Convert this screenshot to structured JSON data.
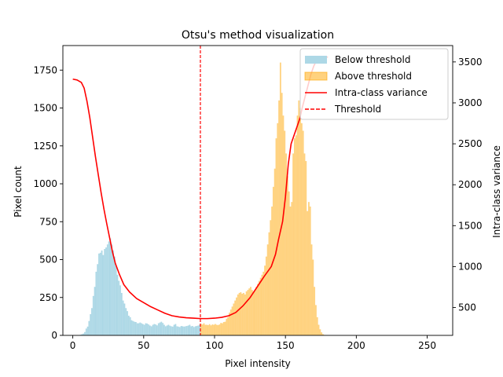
{
  "chart_data": {
    "type": "bar",
    "title": "Otsu's method visualization",
    "xlabel": "Pixel intensity",
    "ylabel": "Pixel count",
    "y2label": "Intra-class variance",
    "xlim": [
      -7,
      268
    ],
    "ylim": [
      0,
      1912
    ],
    "y2lim": [
      160,
      3700
    ],
    "xticks": [
      0,
      50,
      100,
      150,
      200,
      250
    ],
    "yticks": [
      0,
      250,
      500,
      750,
      1000,
      1250,
      1500,
      1750
    ],
    "y2ticks": [
      500,
      1000,
      1500,
      2000,
      2500,
      3000,
      3500
    ],
    "threshold": 90,
    "grid": false,
    "legend_placement": "top-right",
    "legend": [
      {
        "label": "Below threshold",
        "kind": "patch",
        "color": "#add8e6"
      },
      {
        "label": "Above threshold",
        "kind": "patch",
        "color": "#ffa500"
      },
      {
        "label": "Intra-class variance",
        "kind": "line",
        "color": "#ff0000"
      },
      {
        "label": "Threshold",
        "kind": "dashed",
        "color": "#ff0000"
      }
    ],
    "histogram": {
      "bin_width": 1,
      "x_start": 0,
      "counts": [
        0,
        0,
        0,
        0,
        0,
        4,
        8,
        12,
        22,
        45,
        58,
        95,
        140,
        180,
        260,
        320,
        420,
        470,
        540,
        545,
        560,
        530,
        570,
        580,
        600,
        620,
        640,
        600,
        560,
        520,
        460,
        400,
        360,
        330,
        280,
        230,
        210,
        180,
        160,
        130,
        120,
        100,
        95,
        90,
        88,
        80,
        80,
        85,
        80,
        75,
        70,
        80,
        78,
        72,
        65,
        60,
        70,
        75,
        72,
        66,
        80,
        85,
        90,
        82,
        70,
        60,
        65,
        70,
        64,
        60,
        58,
        70,
        75,
        60,
        58,
        55,
        62,
        60,
        58,
        60,
        62,
        65,
        70,
        60,
        62,
        55,
        60,
        62,
        65,
        70,
        75,
        72,
        80,
        70,
        70,
        68,
        74,
        66,
        72,
        70,
        75,
        70,
        68,
        72,
        82,
        80,
        88,
        90,
        110,
        120,
        150,
        170,
        190,
        210,
        230,
        250,
        270,
        280,
        285,
        275,
        280,
        270,
        290,
        300,
        310,
        320,
        300,
        290,
        300,
        320,
        340,
        360,
        380,
        400,
        420,
        460,
        520,
        600,
        680,
        760,
        850,
        980,
        1100,
        1300,
        1400,
        1550,
        1800,
        1600,
        1450,
        1350,
        1200,
        1050,
        950,
        850,
        880,
        1200,
        1300,
        1320,
        1450,
        1550,
        1500,
        1400,
        1350,
        1200,
        1150,
        820,
        880,
        850,
        600,
        500,
        320,
        200,
        120,
        70,
        40,
        20,
        8,
        3,
        0,
        0
      ]
    },
    "variance_curve": {
      "x": [
        0,
        3,
        6,
        8,
        10,
        12,
        14,
        16,
        18,
        20,
        22,
        24,
        26,
        28,
        30,
        33,
        36,
        40,
        45,
        50,
        55,
        60,
        65,
        70,
        75,
        80,
        85,
        90,
        95,
        100,
        105,
        110,
        115,
        120,
        125,
        130,
        135,
        140,
        143,
        145,
        148,
        150,
        152,
        154,
        156,
        158,
        160,
        162,
        165,
        168,
        170,
        172,
        175,
        180
      ],
      "y": [
        3290,
        3280,
        3250,
        3180,
        3020,
        2820,
        2580,
        2340,
        2120,
        1900,
        1700,
        1520,
        1350,
        1180,
        1040,
        900,
        780,
        690,
        610,
        560,
        510,
        470,
        430,
        400,
        385,
        375,
        370,
        365,
        365,
        370,
        380,
        400,
        440,
        520,
        620,
        750,
        880,
        1000,
        1150,
        1320,
        1550,
        1850,
        2250,
        2500,
        2600,
        2700,
        2800,
        2950,
        3150,
        3350,
        3450,
        3520,
        3550,
        3560
      ]
    }
  }
}
